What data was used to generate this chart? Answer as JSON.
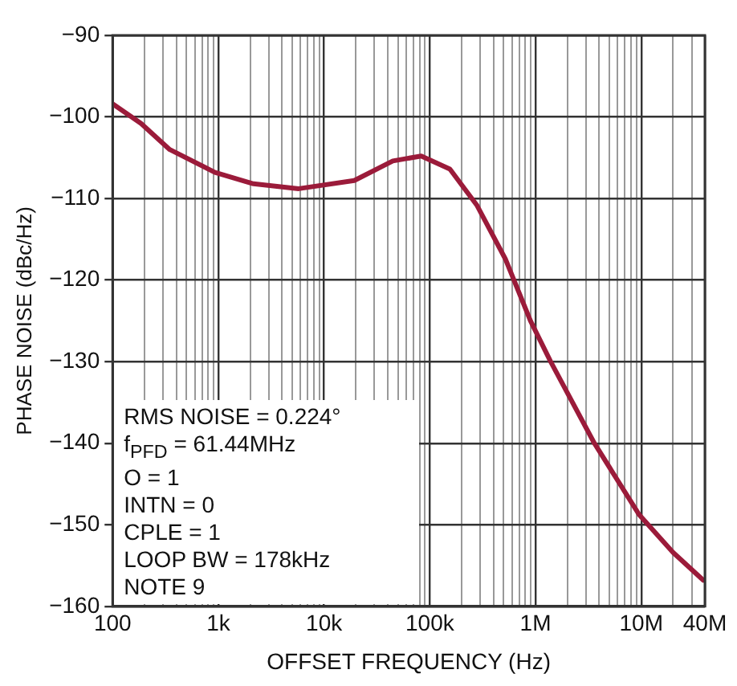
{
  "chart_data": {
    "type": "line",
    "xlabel": "OFFSET FREQUENCY (Hz)",
    "ylabel": "PHASE NOISE (dBc/Hz)",
    "log": "x",
    "grid": true,
    "legend": false,
    "marker": "none",
    "line_style": "solid",
    "xlim": [
      100,
      40000000
    ],
    "ylim": [
      -160,
      -90
    ],
    "xticks": [
      {
        "value": 100,
        "label": "100"
      },
      {
        "value": 200,
        "label": null
      },
      {
        "value": 300,
        "label": null
      },
      {
        "value": 400,
        "label": null
      },
      {
        "value": 500,
        "label": null
      },
      {
        "value": 600,
        "label": null
      },
      {
        "value": 700,
        "label": null
      },
      {
        "value": 800,
        "label": null
      },
      {
        "value": 900,
        "label": null
      },
      {
        "value": 1000,
        "label": "1k"
      },
      {
        "value": 2000,
        "label": null
      },
      {
        "value": 3000,
        "label": null
      },
      {
        "value": 4000,
        "label": null
      },
      {
        "value": 5000,
        "label": null
      },
      {
        "value": 6000,
        "label": null
      },
      {
        "value": 7000,
        "label": null
      },
      {
        "value": 8000,
        "label": null
      },
      {
        "value": 9000,
        "label": null
      },
      {
        "value": 10000,
        "label": "10k"
      },
      {
        "value": 20000,
        "label": null
      },
      {
        "value": 30000,
        "label": null
      },
      {
        "value": 40000,
        "label": null
      },
      {
        "value": 50000,
        "label": null
      },
      {
        "value": 60000,
        "label": null
      },
      {
        "value": 70000,
        "label": null
      },
      {
        "value": 80000,
        "label": null
      },
      {
        "value": 90000,
        "label": null
      },
      {
        "value": 100000,
        "label": "100k"
      },
      {
        "value": 200000,
        "label": null
      },
      {
        "value": 300000,
        "label": null
      },
      {
        "value": 400000,
        "label": null
      },
      {
        "value": 500000,
        "label": null
      },
      {
        "value": 600000,
        "label": null
      },
      {
        "value": 700000,
        "label": null
      },
      {
        "value": 800000,
        "label": null
      },
      {
        "value": 900000,
        "label": null
      },
      {
        "value": 1000000,
        "label": "1M"
      },
      {
        "value": 2000000,
        "label": null
      },
      {
        "value": 3000000,
        "label": null
      },
      {
        "value": 4000000,
        "label": null
      },
      {
        "value": 5000000,
        "label": null
      },
      {
        "value": 6000000,
        "label": null
      },
      {
        "value": 7000000,
        "label": null
      },
      {
        "value": 8000000,
        "label": null
      },
      {
        "value": 9000000,
        "label": null
      },
      {
        "value": 10000000,
        "label": "10M"
      },
      {
        "value": 20000000,
        "label": null
      },
      {
        "value": 30000000,
        "label": null
      },
      {
        "value": 40000000,
        "label": "40M"
      }
    ],
    "yticks": [
      {
        "value": -160,
        "label": "−160"
      },
      {
        "value": -150,
        "label": "−150"
      },
      {
        "value": -140,
        "label": "−140"
      },
      {
        "value": -130,
        "label": "−130"
      },
      {
        "value": -120,
        "label": "−120"
      },
      {
        "value": -110,
        "label": "−110"
      },
      {
        "value": -100,
        "label": "−100"
      },
      {
        "value": -90,
        "label": "−90"
      }
    ],
    "series": [
      {
        "color": "#9b1b3a",
        "x": [
          100,
          186,
          347,
          929,
          2150,
          5760,
          19300,
          44700,
          83000,
          155000,
          278000,
          518000,
          896000,
          1390000,
          3600000,
          9600000,
          20000000,
          38600000
        ],
        "values": [
          -98.4,
          -100.8,
          -104,
          -106.8,
          -108.2,
          -108.8,
          -107.8,
          -105.4,
          -104.8,
          -106.4,
          -110.8,
          -117.4,
          -125,
          -130,
          -140,
          -148.8,
          -153.4,
          -156.8
        ]
      }
    ],
    "annotations": [
      "RMS NOISE = 0.224°",
      "f$_{PFD}$ = 61.44MHz",
      "O = 1",
      "INTN = 0",
      "CPLE = 1",
      "LOOP BW = 178kHz",
      "NOTE 9"
    ]
  }
}
